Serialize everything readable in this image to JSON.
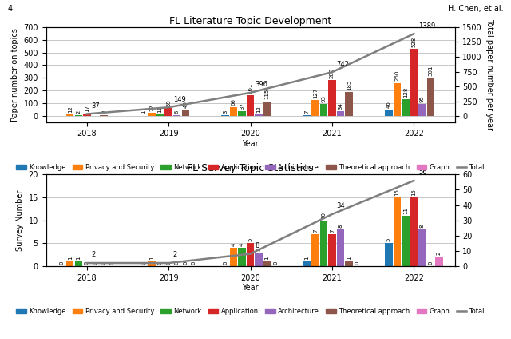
{
  "chart_data": [
    {
      "type": "bar",
      "title": "FL Literature Topic Development",
      "annotations": [
        "4",
        "H. Chen, et al."
      ],
      "xlabel": "Year",
      "ylabel": "Paper number on topics",
      "y2label": "Total paper number per year",
      "categories": [
        "2018",
        "2019",
        "2020",
        "2021",
        "2022"
      ],
      "series": [
        {
          "name": "Knowledge",
          "values": [
            0,
            1,
            3,
            7,
            46
          ],
          "value_labels": [
            null,
            "1",
            "3",
            "7",
            "46"
          ]
        },
        {
          "name": "Privacy and Security",
          "values": [
            12,
            22,
            66,
            127,
            260
          ]
        },
        {
          "name": "Network",
          "values": [
            2,
            11,
            37,
            93,
            128
          ]
        },
        {
          "name": "Application",
          "values": [
            17,
            59,
            161,
            282,
            528
          ]
        },
        {
          "name": "Architecture",
          "values": [
            0,
            6,
            12,
            34,
            95
          ],
          "value_labels": [
            null,
            "6",
            "12",
            "34",
            "95"
          ]
        },
        {
          "name": "Theoretical approach",
          "values": [
            6,
            49,
            115,
            185,
            301
          ]
        },
        {
          "name": "Graph",
          "values": [
            0,
            0,
            0,
            0,
            0
          ],
          "data_labels": false
        },
        {
          "name": "Total",
          "type": "line",
          "axis": "y2",
          "values": [
            37,
            149,
            396,
            742,
            1389
          ],
          "data_labels": true
        }
      ],
      "ylim": [
        -50,
        700
      ],
      "yticks": [
        0,
        100,
        200,
        300,
        400,
        500,
        600,
        700
      ],
      "y2lim": [
        -100,
        1500
      ],
      "y2ticks": [
        0,
        250,
        500,
        750,
        1000,
        1250,
        1500
      ],
      "grid": true,
      "legend": "upper center",
      "data_labels": true
    },
    {
      "type": "bar",
      "title": "FL Survey Topic Statistics",
      "xlabel": "Year",
      "ylabel": "Survey Number",
      "categories": [
        "2018",
        "2019",
        "2020",
        "2021",
        "2022"
      ],
      "series": [
        {
          "name": "Knowledge",
          "values": [
            0,
            0,
            0,
            1,
            5
          ]
        },
        {
          "name": "Privacy and Security",
          "values": [
            1,
            1,
            4,
            7,
            15
          ]
        },
        {
          "name": "Network",
          "values": [
            1,
            0,
            4,
            10,
            11
          ]
        },
        {
          "name": "Application",
          "values": [
            0,
            0,
            5,
            7,
            15
          ]
        },
        {
          "name": "Architecture",
          "values": [
            0,
            0,
            3,
            8,
            8
          ]
        },
        {
          "name": "Theoretical approach",
          "values": [
            0,
            0,
            1,
            1,
            0
          ]
        },
        {
          "name": "Graph",
          "values": [
            0,
            0,
            0,
            0,
            2
          ]
        },
        {
          "name": "Total",
          "type": "line",
          "axis": "y2",
          "values": [
            2,
            2,
            8,
            34,
            56
          ],
          "data_labels": true
        }
      ],
      "ylim": [
        0,
        20
      ],
      "yticks": [
        0,
        5,
        10,
        15,
        20
      ],
      "y2lim": [
        0,
        60
      ],
      "y2ticks": [
        0,
        10,
        20,
        30,
        40,
        50,
        60
      ],
      "grid": true,
      "legend": "upper center",
      "data_labels": true
    }
  ]
}
